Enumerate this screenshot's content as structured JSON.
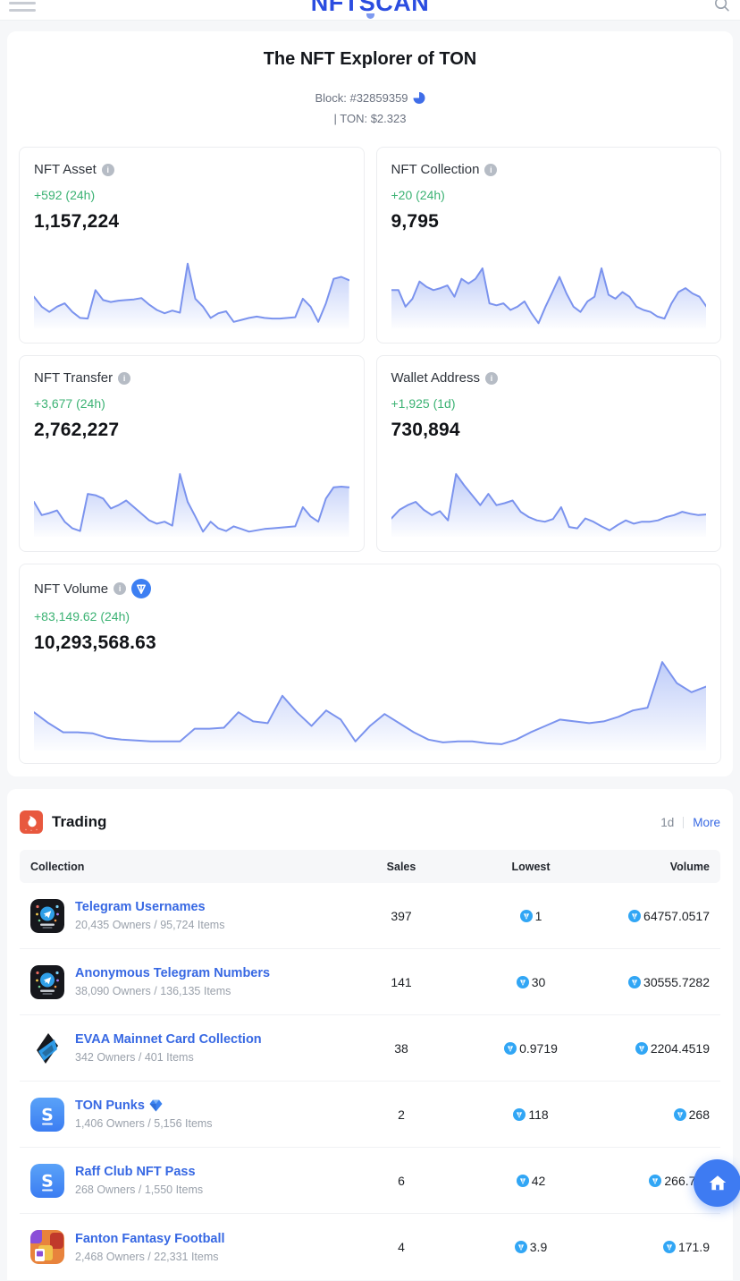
{
  "header": {
    "logo": "NFTSCAN"
  },
  "hero": {
    "title": "The NFT Explorer of TON",
    "block_label": "Block: #32859359",
    "ton_price": "| TON: $2.323"
  },
  "stats": [
    {
      "label": "NFT Asset",
      "change": "+592 (24h)",
      "value": "1,157,224"
    },
    {
      "label": "NFT Collection",
      "change": "+20 (24h)",
      "value": "9,795"
    },
    {
      "label": "NFT Transfer",
      "change": "+3,677 (24h)",
      "value": "2,762,227"
    },
    {
      "label": "Wallet Address",
      "change": "+1,925 (1d)",
      "value": "730,894"
    }
  ],
  "volume": {
    "label": "NFT Volume",
    "change": "+83,149.62 (24h)",
    "value": "10,293,568.63"
  },
  "trading": {
    "title": "Trading",
    "period": "1d",
    "more": "More",
    "columns": [
      "Collection",
      "Sales",
      "Lowest",
      "Volume"
    ],
    "rows": [
      {
        "name": "Telegram Usernames",
        "meta": "20,435 Owners / 95,724 Items",
        "sales": "397",
        "lowest": "1",
        "volume": "64757.0517",
        "verified": false,
        "avatar": "telegram"
      },
      {
        "name": "Anonymous Telegram Numbers",
        "meta": "38,090 Owners / 136,135 Items",
        "sales": "141",
        "lowest": "30",
        "volume": "30555.7282",
        "verified": false,
        "avatar": "telegram"
      },
      {
        "name": "EVAA Mainnet Card Collection",
        "meta": "342 Owners / 401 Items",
        "sales": "38",
        "lowest": "0.9719",
        "volume": "2204.4519",
        "verified": false,
        "avatar": "evaa"
      },
      {
        "name": "TON Punks",
        "meta": "1,406 Owners / 5,156 Items",
        "sales": "2",
        "lowest": "118",
        "volume": "268",
        "verified": true,
        "avatar": "spunk"
      },
      {
        "name": "Raff Club NFT Pass",
        "meta": "268 Owners / 1,550 Items",
        "sales": "6",
        "lowest": "42",
        "volume": "266.755",
        "verified": false,
        "avatar": "spunk"
      },
      {
        "name": "Fanton Fantasy Football",
        "meta": "2,468 Owners / 22,331 Items",
        "sales": "4",
        "lowest": "3.9",
        "volume": "171.9",
        "verified": false,
        "avatar": "fanton"
      }
    ]
  },
  "colors": {
    "accent_blue": "#3768e3",
    "logo_blue": "#2b4de0",
    "positive_green": "#3bb273",
    "chart_line": "#7b93ee",
    "chart_fill": "#8aa3f3",
    "ton_coin_blue": "#31a6f5",
    "fire_orange": "#e8583e",
    "float_button_blue": "#3e7bf2",
    "page_bg": "#f6f7f9"
  },
  "chart_data": [
    {
      "id": 0,
      "type": "area",
      "title": "NFT Asset 24h sparkline",
      "note": "unlabeled sparkline, values normalized 0-1, axes hidden",
      "legend": "none",
      "grid": false,
      "values": [
        0.45,
        0.3,
        0.22,
        0.3,
        0.35,
        0.22,
        0.13,
        0.12,
        0.55,
        0.4,
        0.37,
        0.39,
        0.4,
        0.41,
        0.43,
        0.33,
        0.25,
        0.2,
        0.24,
        0.21,
        0.95,
        0.42,
        0.3,
        0.13,
        0.2,
        0.23,
        0.07,
        0.1,
        0.13,
        0.15,
        0.13,
        0.12,
        0.12,
        0.13,
        0.14,
        0.42,
        0.3,
        0.07,
        0.35,
        0.72,
        0.75,
        0.7
      ]
    },
    {
      "id": 1,
      "type": "area",
      "title": "NFT Collection 24h sparkline",
      "note": "unlabeled sparkline, values normalized 0-1, axes hidden",
      "legend": "none",
      "grid": false,
      "values": [
        0.55,
        0.55,
        0.3,
        0.42,
        0.68,
        0.6,
        0.55,
        0.58,
        0.62,
        0.45,
        0.72,
        0.65,
        0.72,
        0.88,
        0.35,
        0.32,
        0.35,
        0.25,
        0.3,
        0.38,
        0.2,
        0.05,
        0.3,
        0.52,
        0.75,
        0.5,
        0.3,
        0.22,
        0.38,
        0.45,
        0.88,
        0.48,
        0.42,
        0.52,
        0.45,
        0.3,
        0.25,
        0.22,
        0.15,
        0.12,
        0.35,
        0.52,
        0.58,
        0.5,
        0.45,
        0.3
      ]
    },
    {
      "id": 2,
      "type": "area",
      "title": "NFT Transfer 24h sparkline",
      "note": "unlabeled sparkline, values normalized 0-1, axes hidden",
      "legend": "none",
      "grid": false,
      "values": [
        0.5,
        0.3,
        0.33,
        0.37,
        0.2,
        0.1,
        0.06,
        0.62,
        0.6,
        0.55,
        0.4,
        0.45,
        0.52,
        0.42,
        0.32,
        0.22,
        0.17,
        0.2,
        0.14,
        0.92,
        0.5,
        0.28,
        0.05,
        0.2,
        0.1,
        0.06,
        0.13,
        0.09,
        0.05,
        0.07,
        0.09,
        0.1,
        0.11,
        0.12,
        0.13,
        0.42,
        0.28,
        0.2,
        0.55,
        0.72,
        0.73,
        0.72
      ]
    },
    {
      "id": 3,
      "type": "area",
      "title": "Wallet Address 1d sparkline",
      "note": "unlabeled sparkline, values normalized 0-1, axes hidden",
      "legend": "none",
      "grid": false,
      "values": [
        0.25,
        0.38,
        0.45,
        0.5,
        0.38,
        0.3,
        0.36,
        0.22,
        0.92,
        0.75,
        0.6,
        0.45,
        0.62,
        0.45,
        0.48,
        0.52,
        0.35,
        0.27,
        0.22,
        0.2,
        0.24,
        0.42,
        0.12,
        0.1,
        0.25,
        0.2,
        0.13,
        0.07,
        0.15,
        0.22,
        0.17,
        0.2,
        0.2,
        0.22,
        0.27,
        0.3,
        0.35,
        0.32,
        0.3,
        0.31
      ]
    },
    {
      "id": 4,
      "type": "area",
      "title": "NFT Volume 24h sparkline",
      "note": "unlabeled sparkline, values normalized 0-1, axes hidden",
      "legend": "none",
      "grid": false,
      "values": [
        0.4,
        0.28,
        0.18,
        0.18,
        0.17,
        0.12,
        0.1,
        0.09,
        0.08,
        0.08,
        0.08,
        0.22,
        0.22,
        0.23,
        0.4,
        0.3,
        0.28,
        0.58,
        0.4,
        0.25,
        0.42,
        0.32,
        0.08,
        0.25,
        0.38,
        0.28,
        0.18,
        0.1,
        0.07,
        0.08,
        0.08,
        0.06,
        0.05,
        0.1,
        0.18,
        0.25,
        0.32,
        0.3,
        0.28,
        0.3,
        0.35,
        0.42,
        0.45,
        0.95,
        0.72,
        0.62,
        0.68
      ]
    }
  ]
}
